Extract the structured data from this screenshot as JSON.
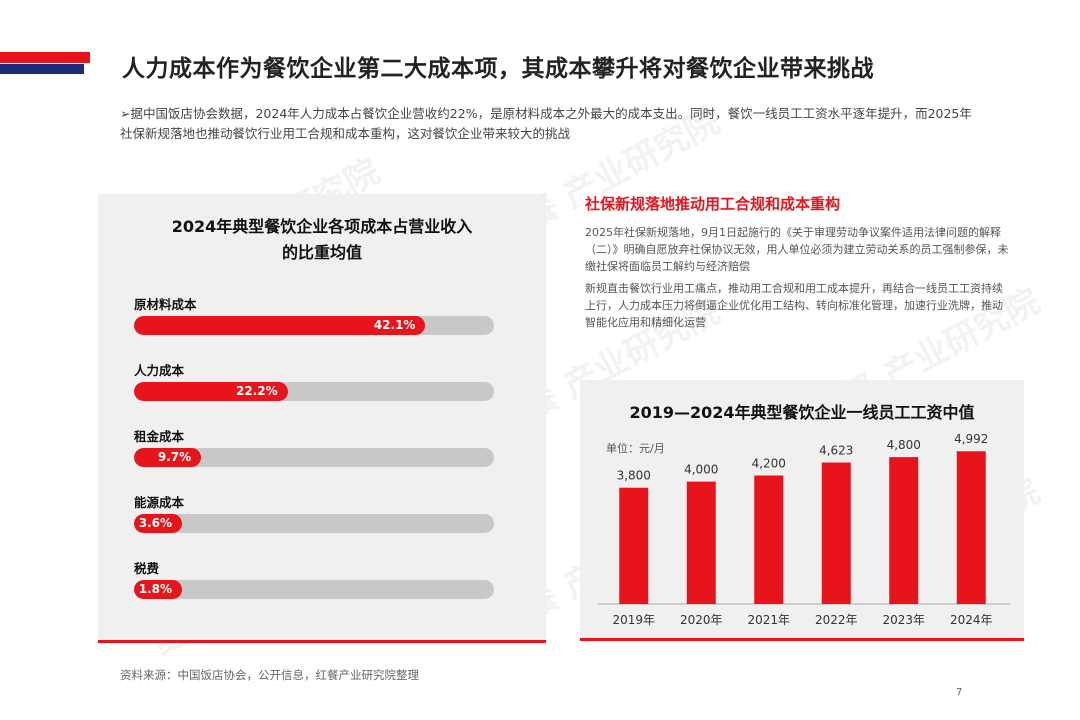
{
  "header": {
    "title": "人力成本作为餐饮企业第二大成本项，其成本攀升将对餐饮企业带来挑战"
  },
  "intro": "➢据中国饭店协会数据，2024年人力成本占餐饮企业营收约22%，是原材料成本之外最大的成本支出。同时，餐饮一线员工工资水平逐年提升，而2025年社保新规落地也推动餐饮行业用工合规和成本重构，这对餐饮企业带来较大的挑战",
  "watermark": "红餐 产业研究院",
  "right_text": {
    "heading": "社保新规落地推动用工合规和成本重构",
    "para1": "2025年社保新规落地，9月1日起施行的《关于审理劳动争议案件适用法律问题的解释（二）》明确自愿放弃社保协议无效，用人单位必须为建立劳动关系的员工强制参保，未缴社保将面临员工解约与经济赔偿",
    "para2": "新规直击餐饮行业用工痛点，推动用工合规和用工成本提升，再结合一线员工工资持续上行，人力成本压力将倒逼企业优化用工结构、转向标准化管理，加速行业洗牌，推动智能化应用和精细化运营"
  },
  "footer": {
    "source": "资料来源：中国饭店协会，公开信息，红餐产业研究院整理",
    "page_number": "7"
  },
  "colors": {
    "accent_red": "#e8141c",
    "accent_blue": "#1e2a7a",
    "track_grey": "#c8c8c8",
    "panel_bg": "#f0f0f0"
  },
  "chart_data": [
    {
      "type": "bar",
      "orientation": "horizontal",
      "title": "2024年典型餐饮企业各项成本占营业收入的比重均值",
      "categories": [
        "原材料成本",
        "人力成本",
        "租金成本",
        "能源成本",
        "税费"
      ],
      "values": [
        42.1,
        22.2,
        9.7,
        3.6,
        1.8
      ],
      "value_labels": [
        "42.1%",
        "22.2%",
        "9.7%",
        "3.6%",
        "1.8%"
      ],
      "unit": "%",
      "xlim": [
        0,
        100
      ]
    },
    {
      "type": "bar",
      "orientation": "vertical",
      "title": "2019—2024年典型餐饮企业一线员工工资中值",
      "unit_label": "单位：元/月",
      "categories": [
        "2019年",
        "2020年",
        "2021年",
        "2022年",
        "2023年",
        "2024年"
      ],
      "values": [
        3800,
        4000,
        4200,
        4623,
        4800,
        4992
      ],
      "value_labels": [
        "3,800",
        "4,000",
        "4,200",
        "4,623",
        "4,800",
        "4,992"
      ],
      "ylim": [
        0,
        5400
      ]
    }
  ]
}
